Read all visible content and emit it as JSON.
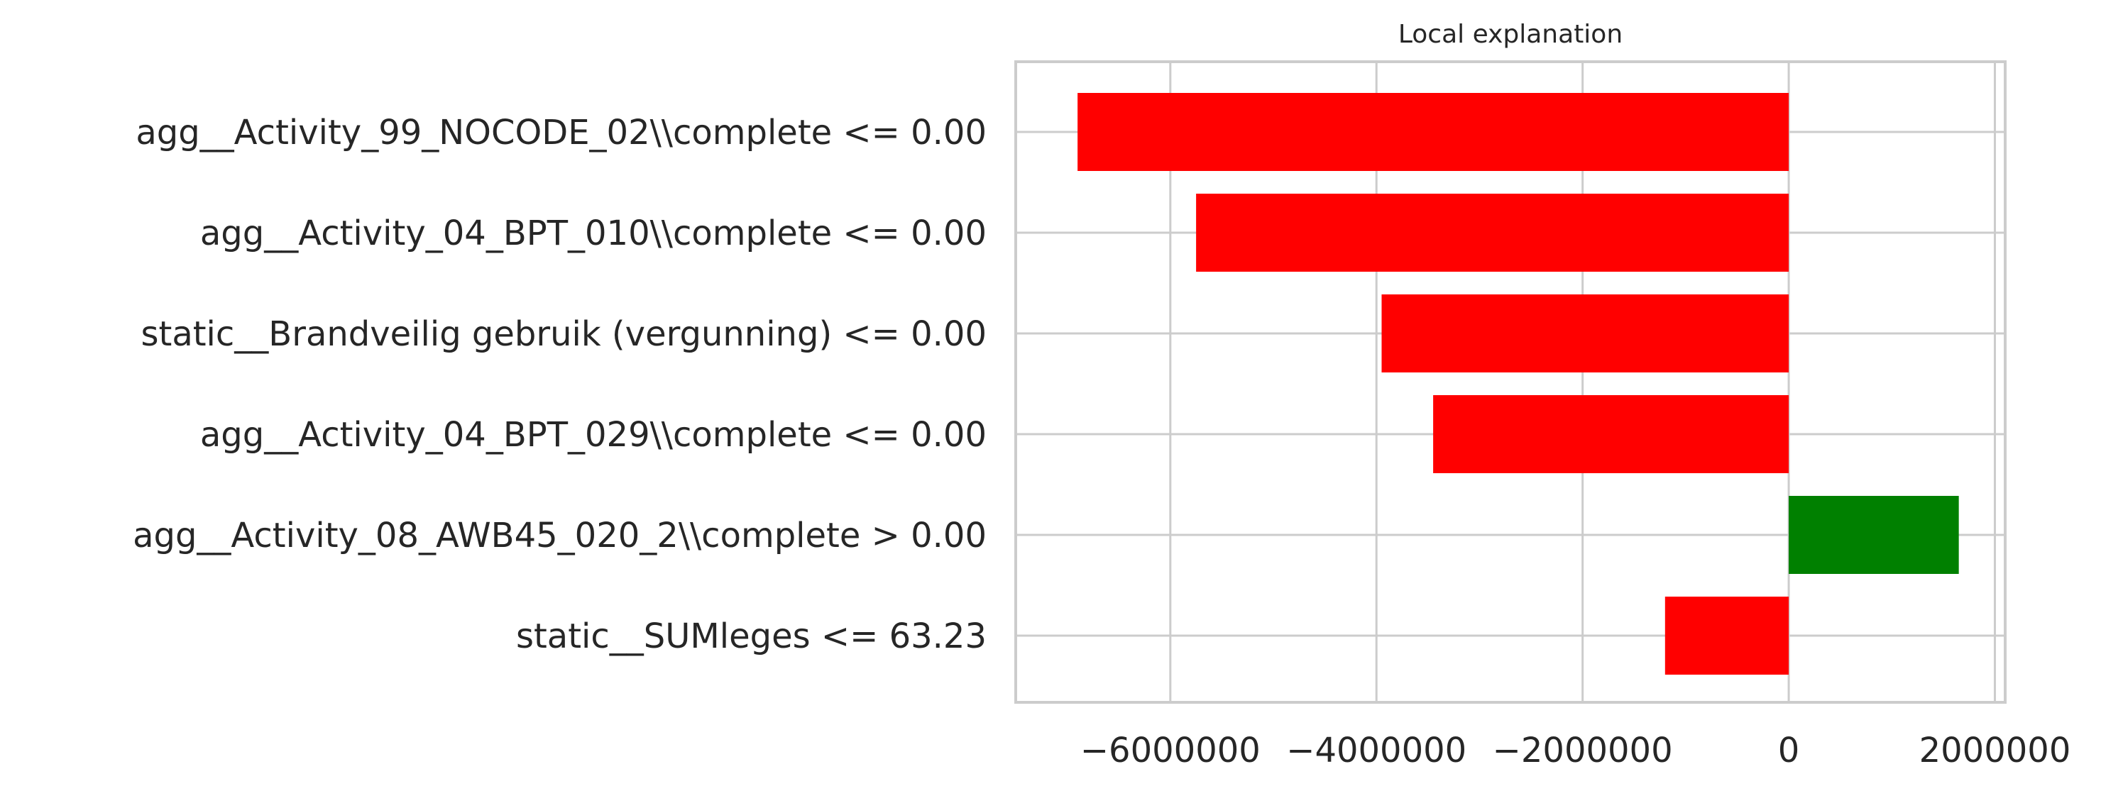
{
  "chart_data": {
    "type": "bar",
    "orientation": "horizontal",
    "title": "Local explanation",
    "xlabel": "",
    "ylabel": "",
    "grid": true,
    "xlim": [
      -7500000,
      2100000
    ],
    "xticks": [
      -6000000,
      -4000000,
      -2000000,
      0,
      2000000
    ],
    "xtick_labels": [
      "−6000000",
      "−4000000",
      "−2000000",
      "0",
      "2000000"
    ],
    "categories": [
      "agg__Activity_99_NOCODE_02\\\\complete <= 0.00",
      "agg__Activity_04_BPT_010\\\\complete <= 0.00",
      "static__Brandveilig gebruik (vergunning) <= 0.00",
      "agg__Activity_04_BPT_029\\\\complete <= 0.00",
      "agg__Activity_08_AWB45_020_2\\\\complete > 0.00",
      "static__SUMleges <= 63.23"
    ],
    "values": [
      -6900000,
      -5750000,
      -3950000,
      -3450000,
      1650000,
      -1200000
    ],
    "colors": {
      "negative": "#ff0000",
      "positive": "#008000"
    }
  }
}
